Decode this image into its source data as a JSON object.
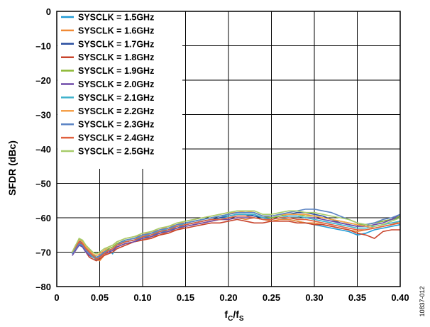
{
  "chart_data": {
    "type": "line",
    "xlabel": "fC/fS",
    "xlabel_main": "f",
    "xlabel_sub1": "C",
    "xlabel_slash": "/f",
    "xlabel_sub2": "S",
    "ylabel": "SFDR (dBc)",
    "xlim": [
      0,
      0.4
    ],
    "ylim": [
      -80,
      0
    ],
    "x_ticks": [
      0,
      0.05,
      0.1,
      0.15,
      0.2,
      0.25,
      0.3,
      0.35,
      0.4
    ],
    "x_tick_labels": [
      "0",
      "0.05",
      "0.10",
      "0.15",
      "0.20",
      "0.25",
      "0.30",
      "0.35",
      "0.40"
    ],
    "y_ticks": [
      0,
      -10,
      -20,
      -30,
      -40,
      -50,
      -60,
      -70,
      -80
    ],
    "y_tick_labels": [
      "0",
      "–10",
      "–20",
      "–30",
      "–40",
      "–50",
      "–60",
      "–70",
      "–80"
    ],
    "grid": true,
    "legend_position": "top-left",
    "figure_id": "10837-012",
    "x": [
      0.018,
      0.022,
      0.026,
      0.03,
      0.034,
      0.038,
      0.042,
      0.046,
      0.05,
      0.055,
      0.06,
      0.065,
      0.07,
      0.075,
      0.08,
      0.09,
      0.1,
      0.11,
      0.12,
      0.13,
      0.14,
      0.15,
      0.16,
      0.17,
      0.18,
      0.19,
      0.2,
      0.21,
      0.22,
      0.23,
      0.24,
      0.25,
      0.26,
      0.27,
      0.28,
      0.29,
      0.3,
      0.31,
      0.32,
      0.33,
      0.34,
      0.35,
      0.36,
      0.37,
      0.38,
      0.39,
      0.4
    ],
    "series": [
      {
        "name": "SYSCLK = 1.5GHz",
        "color": "#1f9ad6",
        "values": [
          -70.5,
          -69.0,
          -67.5,
          -68.5,
          -70.0,
          -69.0,
          -71.0,
          -72.5,
          -71.5,
          -70.0,
          -69.0,
          -70.5,
          -68.0,
          -67.5,
          -67.0,
          -66.5,
          -66.0,
          -65.0,
          -64.5,
          -63.5,
          -63.0,
          -62.0,
          -61.5,
          -61.0,
          -60.5,
          -60.0,
          -60.0,
          -59.5,
          -59.5,
          -59.0,
          -60.0,
          -60.5,
          -60.0,
          -60.5,
          -61.0,
          -61.5,
          -62.0,
          -62.5,
          -63.0,
          -63.5,
          -64.0,
          -65.0,
          -64.5,
          -63.5,
          -63.0,
          -62.5,
          -62.0
        ]
      },
      {
        "name": "SYSCLK = 1.6GHz",
        "color": "#f08a35",
        "values": [
          -70.0,
          -68.5,
          -67.0,
          -68.0,
          -69.5,
          -70.5,
          -71.5,
          -72.0,
          -72.5,
          -71.0,
          -70.0,
          -69.5,
          -68.5,
          -68.0,
          -67.5,
          -67.0,
          -66.5,
          -65.5,
          -65.0,
          -64.0,
          -63.5,
          -62.5,
          -62.0,
          -61.5,
          -61.0,
          -60.5,
          -60.5,
          -60.0,
          -60.5,
          -60.0,
          -60.5,
          -61.0,
          -60.5,
          -60.5,
          -61.0,
          -61.5,
          -61.5,
          -62.0,
          -62.5,
          -63.0,
          -63.5,
          -64.0,
          -63.5,
          -63.0,
          -62.5,
          -62.0,
          -61.0
        ]
      },
      {
        "name": "SYSCLK = 1.7GHz",
        "color": "#2a4ea0",
        "values": [
          -70.0,
          -68.0,
          -66.5,
          -67.5,
          -68.5,
          -70.0,
          -71.0,
          -72.0,
          -71.5,
          -70.5,
          -69.5,
          -69.0,
          -68.0,
          -67.5,
          -67.0,
          -66.5,
          -65.5,
          -65.0,
          -64.0,
          -63.5,
          -62.5,
          -62.0,
          -61.5,
          -61.0,
          -60.5,
          -60.0,
          -59.5,
          -59.0,
          -59.0,
          -59.5,
          -60.0,
          -60.0,
          -59.5,
          -59.0,
          -58.5,
          -58.5,
          -59.0,
          -59.5,
          -60.5,
          -61.5,
          -62.0,
          -62.5,
          -62.0,
          -61.5,
          -61.0,
          -60.5,
          -60.0
        ]
      },
      {
        "name": "SYSCLK = 1.8GHz",
        "color": "#c8442c",
        "values": [
          -70.0,
          -69.0,
          -67.0,
          -68.0,
          -70.0,
          -71.5,
          -72.0,
          -72.5,
          -72.0,
          -71.0,
          -70.5,
          -70.0,
          -69.0,
          -68.5,
          -68.0,
          -67.0,
          -66.5,
          -66.0,
          -65.0,
          -64.5,
          -63.5,
          -63.0,
          -62.5,
          -62.0,
          -61.5,
          -61.5,
          -61.0,
          -60.5,
          -61.0,
          -61.5,
          -61.5,
          -61.0,
          -61.0,
          -61.0,
          -61.5,
          -61.5,
          -62.0,
          -62.0,
          -62.5,
          -63.0,
          -63.5,
          -64.5,
          -65.0,
          -66.0,
          -64.0,
          -63.5,
          -63.5
        ]
      },
      {
        "name": "SYSCLK = 1.9GHz",
        "color": "#8db836",
        "values": [
          -70.0,
          -68.5,
          -66.0,
          -67.0,
          -68.5,
          -69.5,
          -70.5,
          -71.5,
          -71.0,
          -70.0,
          -69.0,
          -68.5,
          -67.5,
          -67.0,
          -66.5,
          -66.0,
          -65.5,
          -64.5,
          -63.5,
          -63.0,
          -62.0,
          -61.5,
          -61.0,
          -60.5,
          -60.0,
          -59.5,
          -59.0,
          -58.5,
          -58.5,
          -58.5,
          -59.5,
          -60.0,
          -59.5,
          -59.0,
          -59.0,
          -59.5,
          -59.5,
          -60.0,
          -60.5,
          -61.0,
          -61.5,
          -62.0,
          -62.0,
          -61.5,
          -61.0,
          -60.5,
          -59.5
        ]
      },
      {
        "name": "SYSCLK = 2.0GHz",
        "color": "#6f4aa8",
        "values": [
          -71.0,
          -69.5,
          -68.0,
          -68.5,
          -70.0,
          -71.0,
          -71.5,
          -72.0,
          -71.5,
          -70.5,
          -70.0,
          -69.5,
          -68.5,
          -68.0,
          -67.5,
          -67.0,
          -66.0,
          -65.5,
          -64.5,
          -64.0,
          -63.0,
          -62.5,
          -62.0,
          -61.5,
          -61.0,
          -60.5,
          -60.5,
          -60.0,
          -60.0,
          -60.0,
          -60.5,
          -60.5,
          -60.0,
          -59.5,
          -59.5,
          -60.0,
          -60.0,
          -60.5,
          -61.0,
          -61.5,
          -62.0,
          -62.5,
          -62.5,
          -62.0,
          -61.5,
          -60.5,
          -59.0
        ]
      },
      {
        "name": "SYSCLK = 2.1GHz",
        "color": "#3fb2cc",
        "values": [
          -70.5,
          -68.5,
          -67.0,
          -67.5,
          -69.0,
          -70.5,
          -71.5,
          -72.0,
          -71.0,
          -70.0,
          -69.5,
          -69.0,
          -68.0,
          -67.5,
          -66.5,
          -66.0,
          -65.5,
          -64.5,
          -64.0,
          -63.0,
          -62.5,
          -61.5,
          -61.0,
          -60.5,
          -60.0,
          -59.5,
          -59.5,
          -59.0,
          -59.0,
          -59.0,
          -60.0,
          -60.5,
          -60.0,
          -59.5,
          -59.5,
          -60.0,
          -60.5,
          -61.0,
          -61.5,
          -62.0,
          -62.5,
          -63.0,
          -63.0,
          -62.5,
          -62.0,
          -61.5,
          -61.0
        ]
      },
      {
        "name": "SYSCLK = 2.2GHz",
        "color": "#f5a04a",
        "values": [
          -70.0,
          -68.0,
          -66.5,
          -67.0,
          -68.5,
          -69.5,
          -70.5,
          -71.0,
          -70.5,
          -69.5,
          -68.5,
          -68.0,
          -67.0,
          -66.5,
          -66.0,
          -65.5,
          -65.0,
          -64.0,
          -63.5,
          -62.5,
          -62.0,
          -61.0,
          -60.5,
          -60.0,
          -59.5,
          -59.0,
          -58.5,
          -58.5,
          -58.0,
          -58.5,
          -59.5,
          -59.5,
          -59.0,
          -59.0,
          -59.0,
          -59.0,
          -59.5,
          -60.0,
          -60.5,
          -61.0,
          -61.5,
          -62.0,
          -62.5,
          -63.0,
          -62.5,
          -62.0,
          -61.5
        ]
      },
      {
        "name": "SYSCLK = 2.3GHz",
        "color": "#5b84c4",
        "values": [
          -70.5,
          -69.0,
          -67.5,
          -68.0,
          -69.5,
          -70.5,
          -71.0,
          -71.5,
          -71.0,
          -70.0,
          -69.5,
          -69.0,
          -68.0,
          -67.0,
          -66.5,
          -66.0,
          -65.0,
          -64.5,
          -63.5,
          -63.0,
          -62.0,
          -61.5,
          -61.0,
          -60.5,
          -60.0,
          -59.5,
          -59.0,
          -58.5,
          -58.5,
          -58.5,
          -59.5,
          -59.5,
          -59.0,
          -58.5,
          -58.0,
          -57.5,
          -57.5,
          -58.0,
          -58.5,
          -59.5,
          -60.5,
          -61.5,
          -62.0,
          -61.5,
          -60.5,
          -60.0,
          -59.0
        ]
      },
      {
        "name": "SYSCLK = 2.4GHz",
        "color": "#e0603e",
        "values": [
          -70.0,
          -68.5,
          -67.0,
          -67.5,
          -69.0,
          -70.0,
          -71.0,
          -72.0,
          -71.5,
          -70.5,
          -69.5,
          -69.0,
          -68.0,
          -67.5,
          -67.0,
          -66.5,
          -65.5,
          -65.0,
          -64.0,
          -63.5,
          -62.5,
          -62.0,
          -61.5,
          -61.0,
          -60.5,
          -60.5,
          -60.0,
          -59.5,
          -59.5,
          -60.0,
          -60.5,
          -60.5,
          -60.0,
          -60.0,
          -60.5,
          -60.5,
          -61.0,
          -61.5,
          -62.0,
          -62.5,
          -63.0,
          -63.5,
          -63.5,
          -63.0,
          -62.5,
          -62.0,
          -61.5
        ]
      },
      {
        "name": "SYSCLK = 2.5GHz",
        "color": "#a7cc6a",
        "values": [
          -70.0,
          -68.0,
          -66.0,
          -66.5,
          -68.0,
          -69.0,
          -70.0,
          -70.5,
          -70.0,
          -69.0,
          -68.5,
          -68.0,
          -67.0,
          -66.5,
          -66.0,
          -65.5,
          -64.5,
          -64.0,
          -63.0,
          -62.5,
          -61.5,
          -61.0,
          -60.5,
          -60.0,
          -59.5,
          -59.0,
          -58.5,
          -58.0,
          -58.0,
          -58.0,
          -59.0,
          -59.0,
          -58.5,
          -58.0,
          -58.0,
          -58.5,
          -58.5,
          -59.0,
          -59.5,
          -60.0,
          -60.5,
          -61.5,
          -62.0,
          -62.5,
          -62.0,
          -61.0,
          -60.0
        ]
      }
    ]
  }
}
